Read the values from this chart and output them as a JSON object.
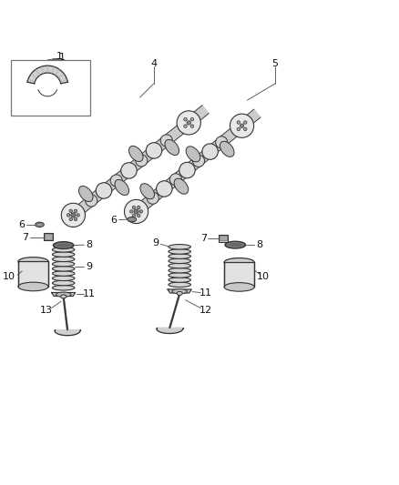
{
  "background_color": "#ffffff",
  "line_color": "#333333",
  "label_color": "#111111",
  "shaft_fc": "#d8d8d8",
  "lobe_fc": "#c0c0c0",
  "journal_fc": "#e5e5e5",
  "dark_fc": "#888888",
  "spring_fc": "#d0d0d0",
  "tappet_fc": "#e0e0e0",
  "valve_fc": "#cccccc"
}
